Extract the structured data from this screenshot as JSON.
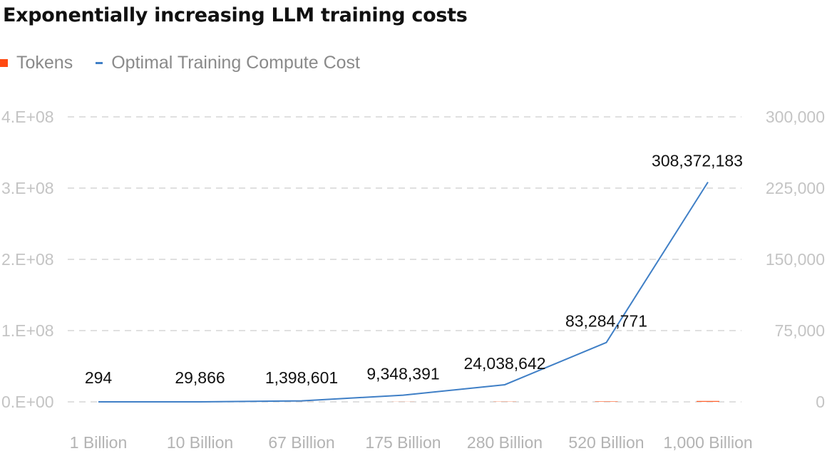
{
  "title": "Exponentially increasing LLM training costs",
  "chart_data": {
    "type": "bar",
    "title": "Exponentially increasing LLM training costs",
    "categories": [
      "1 Billion",
      "10 Billion",
      "67 Billion",
      "175 Billion",
      "280 Billion",
      "520 Billion",
      "1,000 Billion"
    ],
    "series": [
      {
        "name": "Tokens",
        "type": "bar",
        "axis": "right",
        "color": "#ff4a12",
        "values": [
          1,
          10,
          67,
          175,
          280,
          520,
          1000
        ]
      },
      {
        "name": "Optimal Training Compute Cost",
        "type": "line",
        "axis": "left",
        "color": "#3f7fc6",
        "values": [
          294,
          29866,
          1398601,
          9348391,
          24038642,
          83284771,
          308372183
        ],
        "data_labels": [
          "294",
          "29,866",
          "1,398,601",
          "9,348,391",
          "24,038,642",
          "83,284,771",
          "308,372,183"
        ]
      }
    ],
    "y_left": {
      "ticks": [
        0,
        100000000,
        200000000,
        300000000,
        400000000
      ],
      "tick_labels": [
        "0.E+00",
        "1.E+08",
        "2.E+08",
        "3.E+08",
        "4.E+08"
      ],
      "ylim": [
        0,
        400000000
      ]
    },
    "y_right": {
      "ticks": [
        0,
        75000,
        150000,
        225000,
        300000
      ],
      "tick_labels": [
        "0",
        "75,000",
        "150,000",
        "225,000",
        "300,000"
      ],
      "ylim": [
        0,
        300000
      ]
    },
    "grid": true,
    "legend": "top-left"
  }
}
